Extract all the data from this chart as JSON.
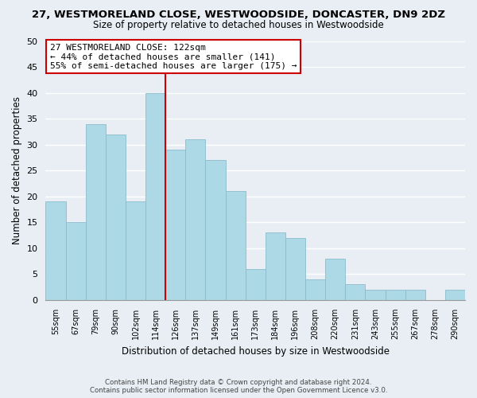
{
  "title": "27, WESTMORELAND CLOSE, WESTWOODSIDE, DONCASTER, DN9 2DZ",
  "subtitle": "Size of property relative to detached houses in Westwoodside",
  "xlabel": "Distribution of detached houses by size in Westwoodside",
  "ylabel": "Number of detached properties",
  "categories": [
    "55sqm",
    "67sqm",
    "79sqm",
    "90sqm",
    "102sqm",
    "114sqm",
    "126sqm",
    "137sqm",
    "149sqm",
    "161sqm",
    "173sqm",
    "184sqm",
    "196sqm",
    "208sqm",
    "220sqm",
    "231sqm",
    "243sqm",
    "255sqm",
    "267sqm",
    "278sqm",
    "290sqm"
  ],
  "values": [
    19,
    15,
    34,
    32,
    19,
    40,
    29,
    31,
    27,
    21,
    6,
    13,
    12,
    4,
    8,
    3,
    2,
    2,
    2,
    0,
    2
  ],
  "bar_color": "#add8e6",
  "bar_edge_color": "#8bbccc",
  "vline_color": "#cc0000",
  "annotation_title": "27 WESTMORELAND CLOSE: 122sqm",
  "annotation_line1": "← 44% of detached houses are smaller (141)",
  "annotation_line2": "55% of semi-detached houses are larger (175) →",
  "annotation_box_color": "#ffffff",
  "annotation_box_edge": "#cc0000",
  "ylim": [
    0,
    50
  ],
  "yticks": [
    0,
    5,
    10,
    15,
    20,
    25,
    30,
    35,
    40,
    45,
    50
  ],
  "footer_line1": "Contains HM Land Registry data © Crown copyright and database right 2024.",
  "footer_line2": "Contains public sector information licensed under the Open Government Licence v3.0.",
  "background_color": "#e8eef4"
}
